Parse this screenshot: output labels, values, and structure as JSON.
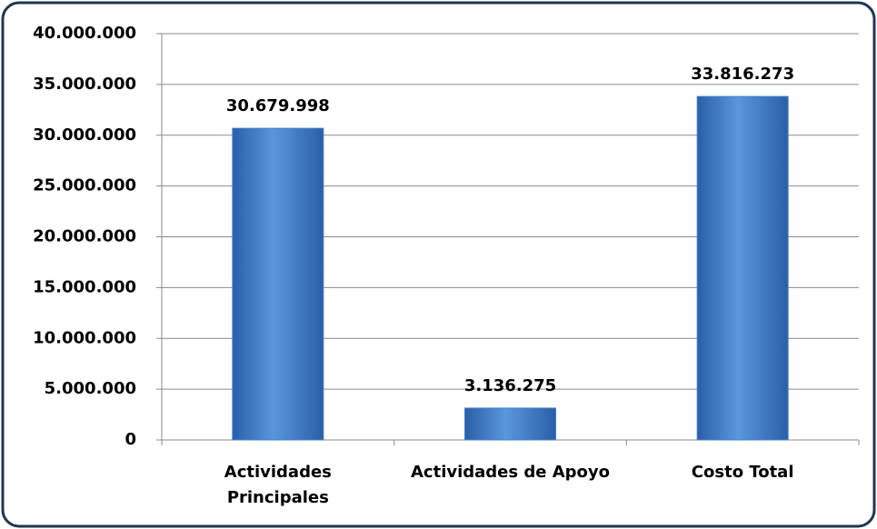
{
  "chart_data": {
    "type": "bar",
    "categories": [
      "Actividades\nPrincipales",
      "Actividades de Apoyo",
      "Costo Total"
    ],
    "values": [
      30679998,
      3136275,
      33816273
    ],
    "value_labels": [
      "30.679.998",
      "3.136.275",
      "33.816.273"
    ],
    "color": "#3f7fcf",
    "ylim": [
      0,
      40000000
    ],
    "yticks": [
      {
        "value": 0,
        "label": "0"
      },
      {
        "value": 5000000,
        "label": "5.000.000"
      },
      {
        "value": 10000000,
        "label": "10.000.000"
      },
      {
        "value": 15000000,
        "label": "15.000.000"
      },
      {
        "value": 20000000,
        "label": "20.000.000"
      },
      {
        "value": 25000000,
        "label": "25.000.000"
      },
      {
        "value": 30000000,
        "label": "30.000.000"
      },
      {
        "value": 35000000,
        "label": "35.000.000"
      },
      {
        "value": 40000000,
        "label": "40.000.000"
      }
    ],
    "grid": true
  }
}
